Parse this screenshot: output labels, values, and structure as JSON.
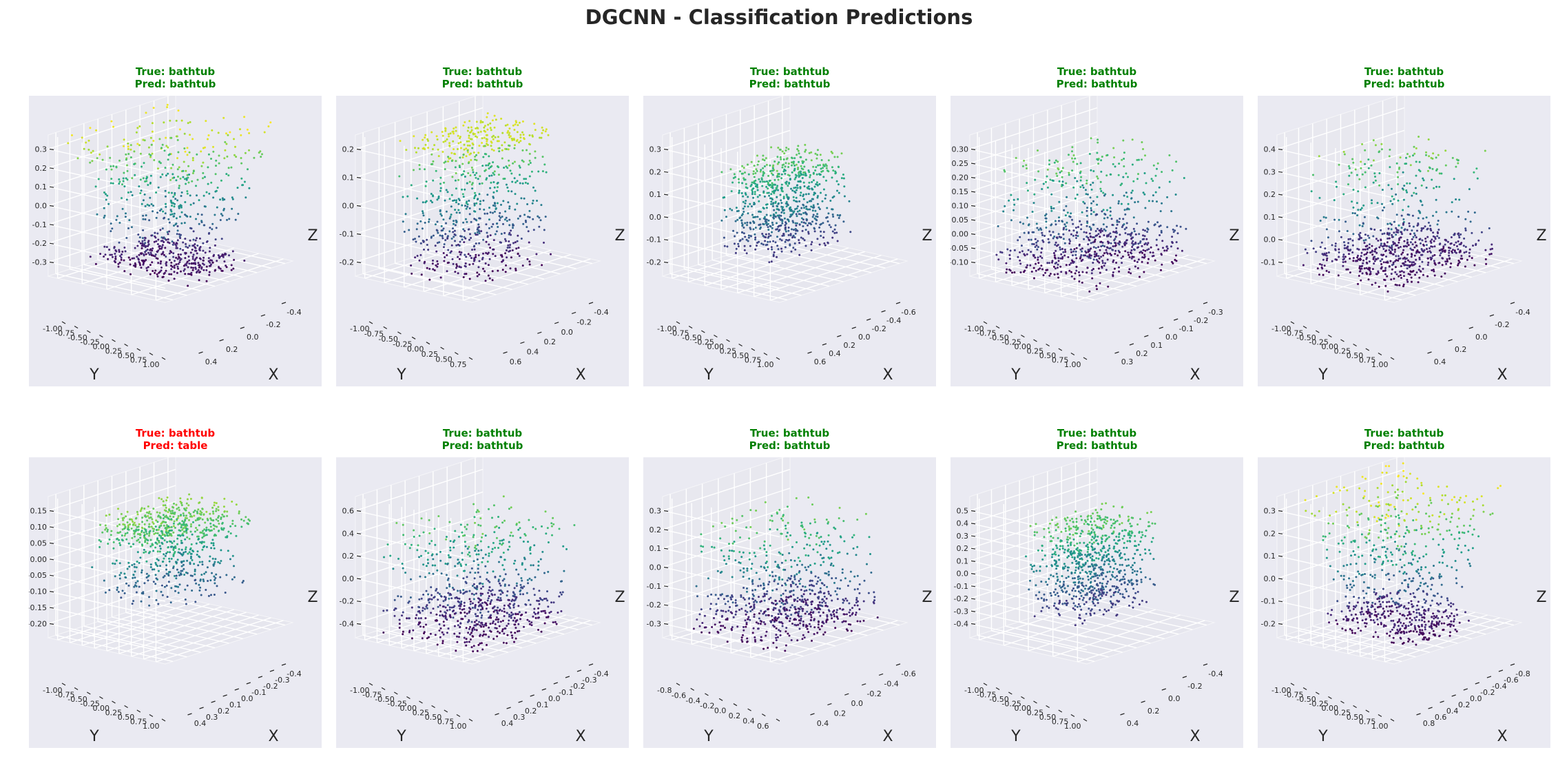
{
  "figure_title": "DGCNN - Classification Predictions",
  "colors": {
    "correct": "#008000",
    "incorrect": "#ff0000",
    "pane_bg": "#eaeaf2",
    "grid": "#ffffff",
    "colormap": "viridis"
  },
  "chart_data": [
    {
      "type": "scatter",
      "true_label": "True: bathtub",
      "pred_label": "Pred: bathtub",
      "correct": true,
      "shape": "tub",
      "zlim": [
        -0.35,
        0.38
      ],
      "zticks": [
        "0.3",
        "0.2",
        "0.1",
        "0.0",
        "-0.1",
        "-0.2",
        "-0.3"
      ],
      "yticks": [
        "-1.00",
        "-0.75",
        "-0.50",
        "-0.25",
        "0.00",
        "0.25",
        "0.50",
        "0.75",
        "1.00"
      ],
      "xticks": [
        "-0.4",
        "-0.2",
        "0.0",
        "0.2",
        "0.4"
      ],
      "xlabel": "X",
      "ylabel": "Y",
      "zlabel": "Z"
    },
    {
      "type": "scatter",
      "true_label": "True: bathtub",
      "pred_label": "Pred: bathtub",
      "correct": true,
      "shape": "rim",
      "zlim": [
        -0.25,
        0.26
      ],
      "zticks": [
        "0.2",
        "0.1",
        "0.0",
        "-0.1",
        "-0.2"
      ],
      "yticks": [
        "-1.00",
        "-0.75",
        "-0.50",
        "-0.25",
        "0.00",
        "0.25",
        "0.50",
        "0.75"
      ],
      "xticks": [
        "-0.4",
        "-0.2",
        "0.0",
        "0.2",
        "0.4",
        "0.6"
      ],
      "xlabel": "X",
      "ylabel": "Y",
      "zlabel": "Z"
    },
    {
      "type": "scatter",
      "true_label": "True: bathtub",
      "pred_label": "Pred: bathtub",
      "correct": true,
      "shape": "box",
      "zlim": [
        -0.28,
        0.35
      ],
      "zticks": [
        "0.3",
        "0.2",
        "0.1",
        "0.0",
        "-0.1",
        "-0.2"
      ],
      "yticks": [
        "-1.00",
        "-0.75",
        "-0.50",
        "-0.25",
        "0.00",
        "0.25",
        "0.50",
        "0.75",
        "1.00"
      ],
      "xticks": [
        "-0.6",
        "-0.4",
        "-0.2",
        "0.0",
        "0.2",
        "0.4",
        "0.6"
      ],
      "xlabel": "X",
      "ylabel": "Y",
      "zlabel": "Z"
    },
    {
      "type": "scatter",
      "true_label": "True: bathtub",
      "pred_label": "Pred: bathtub",
      "correct": true,
      "shape": "wide",
      "zlim": [
        -0.13,
        0.32
      ],
      "zticks": [
        "0.30",
        "0.25",
        "0.20",
        "0.15",
        "0.10",
        "0.05",
        "0.00",
        "-0.05",
        "-0.10"
      ],
      "yticks": [
        "-1.00",
        "-0.75",
        "-0.50",
        "-0.25",
        "0.00",
        "0.25",
        "0.50",
        "0.75",
        "1.00"
      ],
      "xticks": [
        "-0.3",
        "-0.2",
        "-0.1",
        "0.0",
        "0.1",
        "0.2",
        "0.3"
      ],
      "xlabel": "X",
      "ylabel": "Y",
      "zlabel": "Z"
    },
    {
      "type": "scatter",
      "true_label": "True: bathtub",
      "pred_label": "Pred: bathtub",
      "correct": true,
      "shape": "flat",
      "zlim": [
        -0.16,
        0.43
      ],
      "zticks": [
        "0.4",
        "0.3",
        "0.2",
        "0.1",
        "0.0",
        "-0.1"
      ],
      "yticks": [
        "-1.00",
        "-0.75",
        "-0.50",
        "-0.25",
        "0.00",
        "0.25",
        "0.50",
        "0.75",
        "1.00"
      ],
      "xticks": [
        "-0.4",
        "-0.2",
        "0.0",
        "0.2",
        "0.4"
      ],
      "xlabel": "X",
      "ylabel": "Y",
      "zlabel": "Z"
    },
    {
      "type": "scatter",
      "true_label": "True: bathtub",
      "pred_label": "Pred: table",
      "correct": false,
      "shape": "top",
      "zlim": [
        -0.23,
        0.17
      ],
      "zticks": [
        "0.15",
        "0.10",
        "0.05",
        "0.00",
        "-0.05",
        "-0.10",
        "-0.15",
        "-0.20"
      ],
      "yticks": [
        "-1.00",
        "-0.75",
        "-0.50",
        "-0.25",
        "0.00",
        "0.25",
        "0.50",
        "0.75",
        "1.00"
      ],
      "xticks": [
        "-0.4",
        "-0.3",
        "-0.2",
        "-0.1",
        "0.0",
        "0.1",
        "0.2",
        "0.3",
        "0.4"
      ],
      "xlabel": "X",
      "ylabel": "Y",
      "zlabel": "Z"
    },
    {
      "type": "scatter",
      "true_label": "True: bathtub",
      "pred_label": "Pred: bathtub",
      "correct": true,
      "shape": "wide",
      "zlim": [
        -0.45,
        0.65
      ],
      "zticks": [
        "0.6",
        "0.4",
        "0.2",
        "0.0",
        "-0.2",
        "-0.4"
      ],
      "yticks": [
        "-1.00",
        "-0.75",
        "-0.50",
        "-0.25",
        "0.00",
        "0.25",
        "0.50",
        "0.75",
        "1.00"
      ],
      "xticks": [
        "-0.4",
        "-0.3",
        "-0.2",
        "-0.1",
        "0.0",
        "0.1",
        "0.2",
        "0.3",
        "0.4"
      ],
      "xlabel": "X",
      "ylabel": "Y",
      "zlabel": "Z"
    },
    {
      "type": "scatter",
      "true_label": "True: bathtub",
      "pred_label": "Pred: bathtub",
      "correct": true,
      "shape": "wide",
      "zlim": [
        -0.32,
        0.35
      ],
      "zticks": [
        "0.3",
        "0.2",
        "0.1",
        "0.0",
        "-0.1",
        "-0.2",
        "-0.3"
      ],
      "yticks": [
        "-0.8",
        "-0.6",
        "-0.4",
        "-0.2",
        "0.0",
        "0.2",
        "0.4",
        "0.6"
      ],
      "xticks": [
        "-0.6",
        "-0.4",
        "-0.2",
        "0.0",
        "0.2",
        "0.4"
      ],
      "xlabel": "X",
      "ylabel": "Y",
      "zlabel": "Z"
    },
    {
      "type": "scatter",
      "true_label": "True: bathtub",
      "pred_label": "Pred: bathtub",
      "correct": true,
      "shape": "box",
      "zlim": [
        -0.42,
        0.55
      ],
      "zticks": [
        "0.5",
        "0.4",
        "0.3",
        "0.2",
        "0.1",
        "0.0",
        "-0.1",
        "-0.2",
        "-0.3",
        "-0.4"
      ],
      "yticks": [
        "-1.00",
        "-0.75",
        "-0.50",
        "-0.25",
        "0.00",
        "0.25",
        "0.50",
        "0.75",
        "1.00"
      ],
      "xticks": [
        "-0.4",
        "-0.2",
        "0.0",
        "0.2",
        "0.4"
      ],
      "xlabel": "X",
      "ylabel": "Y",
      "zlabel": "Z"
    },
    {
      "type": "scatter",
      "true_label": "True: bathtub",
      "pred_label": "Pred: bathtub",
      "correct": true,
      "shape": "tub",
      "zlim": [
        -0.28,
        0.34
      ],
      "zticks": [
        "0.3",
        "0.2",
        "0.1",
        "0.0",
        "-0.1",
        "-0.2"
      ],
      "yticks": [
        "-1.00",
        "-0.75",
        "-0.50",
        "-0.25",
        "0.00",
        "0.25",
        "0.50",
        "0.75",
        "1.00"
      ],
      "xticks": [
        "-0.8",
        "-0.6",
        "-0.4",
        "-0.2",
        "0.0",
        "0.2",
        "0.4",
        "0.6",
        "0.8"
      ],
      "xlabel": "X",
      "ylabel": "Y",
      "zlabel": "Z"
    }
  ]
}
